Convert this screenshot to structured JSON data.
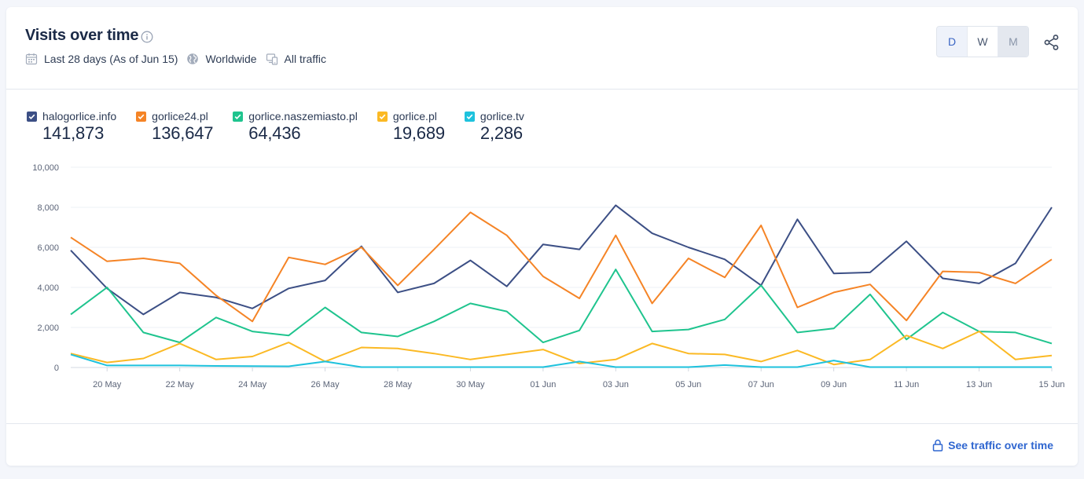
{
  "header": {
    "title": "Visits over time",
    "period": "Last 28 days (As of Jun 15)",
    "region": "Worldwide",
    "traffic": "All traffic",
    "granularity": [
      {
        "label": "D",
        "state": "selected"
      },
      {
        "label": "W",
        "state": "normal"
      },
      {
        "label": "M",
        "state": "disabled"
      }
    ]
  },
  "legend": [
    {
      "name": "halogorlice.info",
      "total": "141,873",
      "color": "#3c4f85"
    },
    {
      "name": "gorlice24.pl",
      "total": "136,647",
      "color": "#f58426"
    },
    {
      "name": "gorlice.naszemiasto.pl",
      "total": "64,436",
      "color": "#1fc48e"
    },
    {
      "name": "gorlice.pl",
      "total": "19,689",
      "color": "#fbb924"
    },
    {
      "name": "gorlice.tv",
      "total": "2,286",
      "color": "#1ec2dd"
    }
  ],
  "footer": {
    "cta_label": "See traffic over time"
  },
  "chart_data": {
    "type": "line",
    "x": [
      "19 May",
      "20 May",
      "21 May",
      "22 May",
      "23 May",
      "24 May",
      "25 May",
      "26 May",
      "27 May",
      "28 May",
      "29 May",
      "30 May",
      "31 May",
      "01 Jun",
      "02 Jun",
      "03 Jun",
      "04 Jun",
      "05 Jun",
      "06 Jun",
      "07 Jun",
      "08 Jun",
      "09 Jun",
      "10 Jun",
      "11 Jun",
      "12 Jun",
      "13 Jun",
      "14 Jun",
      "15 Jun"
    ],
    "x_tick_labels": [
      "20 May",
      "22 May",
      "24 May",
      "26 May",
      "28 May",
      "30 May",
      "01 Jun",
      "03 Jun",
      "05 Jun",
      "07 Jun",
      "09 Jun",
      "11 Jun",
      "13 Jun",
      "15 Jun"
    ],
    "y_ticks": [
      "0",
      "2,000",
      "4,000",
      "6,000",
      "8,000",
      "10,000"
    ],
    "ylim": [
      0,
      10000
    ],
    "grid": true,
    "series": [
      {
        "name": "halogorlice.info",
        "color": "#3c4f85",
        "values": [
          5850,
          3950,
          2650,
          3750,
          3500,
          2950,
          3950,
          4350,
          6050,
          3750,
          4200,
          5350,
          4050,
          6150,
          5900,
          8100,
          6700,
          6000,
          5400,
          4100,
          7400,
          4700,
          4750,
          6300,
          4450,
          4200,
          5200,
          8000
        ]
      },
      {
        "name": "gorlice24.pl",
        "color": "#f58426",
        "values": [
          6500,
          5300,
          5450,
          5200,
          3600,
          2300,
          5500,
          5150,
          6000,
          4100,
          5900,
          7750,
          6600,
          4550,
          3450,
          6600,
          3200,
          5450,
          4500,
          7100,
          3000,
          3750,
          4150,
          2350,
          4800,
          4750,
          4200,
          5400
        ]
      },
      {
        "name": "gorlice.naszemiasto.pl",
        "color": "#1fc48e",
        "values": [
          2650,
          4000,
          1750,
          1250,
          2500,
          1800,
          1600,
          3000,
          1750,
          1550,
          2300,
          3200,
          2800,
          1250,
          1850,
          4900,
          1800,
          1900,
          2400,
          4100,
          1750,
          1950,
          3650,
          1400,
          2750,
          1800,
          1750,
          1200
        ]
      },
      {
        "name": "gorlice.pl",
        "color": "#fbb924",
        "values": [
          700,
          250,
          450,
          1200,
          400,
          550,
          1250,
          300,
          1000,
          950,
          700,
          400,
          650,
          900,
          200,
          400,
          1200,
          700,
          650,
          300,
          850,
          150,
          400,
          1600,
          950,
          1800,
          400,
          600
        ]
      },
      {
        "name": "gorlice.tv",
        "color": "#1ec2dd",
        "values": [
          650,
          100,
          100,
          100,
          80,
          70,
          60,
          300,
          20,
          20,
          20,
          20,
          20,
          20,
          300,
          20,
          20,
          20,
          120,
          20,
          20,
          350,
          20,
          20,
          20,
          20,
          20,
          20
        ]
      }
    ]
  }
}
